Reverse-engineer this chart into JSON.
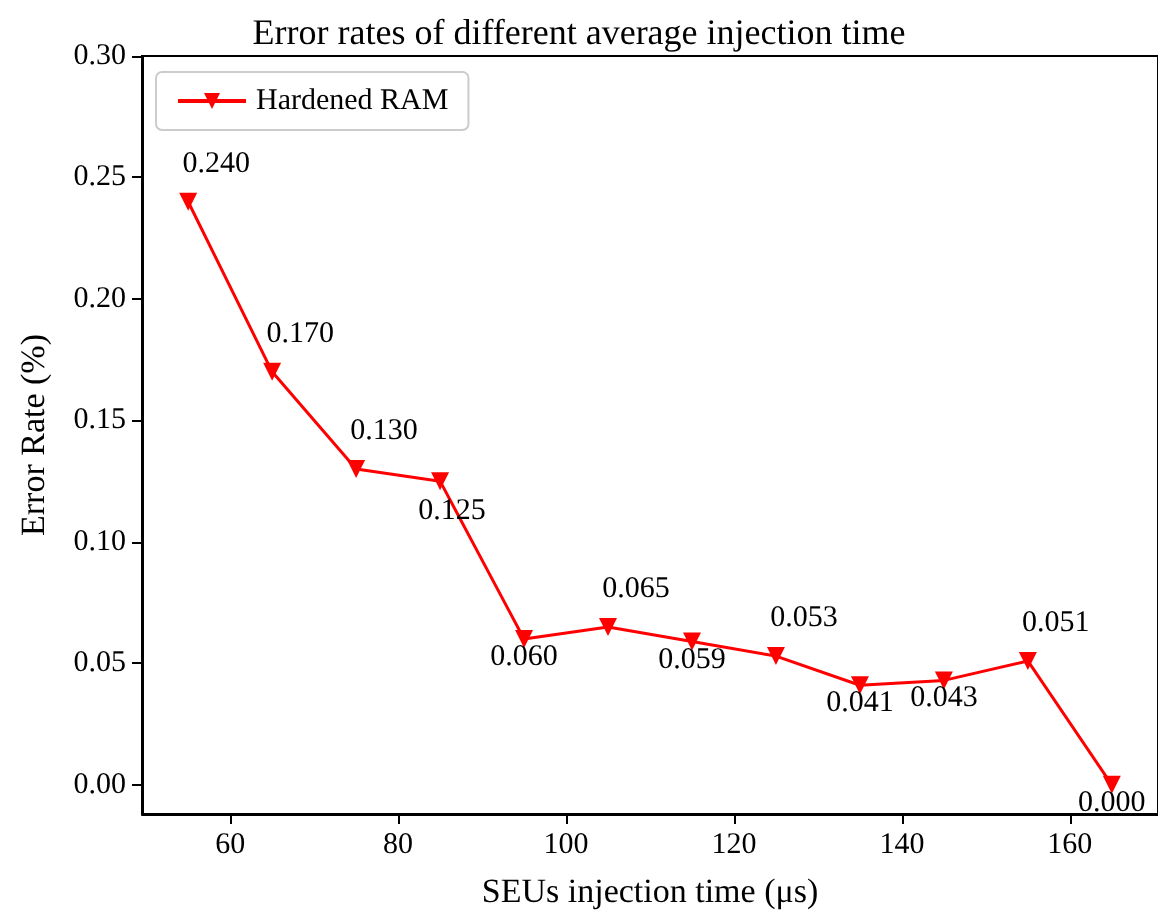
{
  "chart_data": {
    "type": "line",
    "title": "Error rates of different average injection time",
    "xlabel": "SEUs injection time (μs)",
    "ylabel": "Error Rate (%)",
    "x": [
      55,
      65,
      75,
      85,
      95,
      105,
      115,
      125,
      135,
      145,
      155,
      165
    ],
    "series": [
      {
        "name": "Hardened RAM",
        "color": "#ff0000",
        "values": [
          0.24,
          0.17,
          0.13,
          0.125,
          0.06,
          0.065,
          0.059,
          0.053,
          0.041,
          0.043,
          0.051,
          0.0
        ],
        "value_labels": [
          "0.240",
          "0.170",
          "0.130",
          "0.125",
          "0.060",
          "0.065",
          "0.059",
          "0.053",
          "0.041",
          "0.043",
          "0.051",
          "0.000"
        ]
      }
    ],
    "xlim": [
      49.5,
      170.5
    ],
    "xticks": [
      60,
      80,
      100,
      120,
      140,
      160
    ],
    "ylim": [
      -0.012,
      0.3
    ],
    "yticks": [
      {
        "value": 0,
        "label": "0.00"
      },
      {
        "value": 0.05,
        "label": "0.05"
      },
      {
        "value": 0.1,
        "label": "0.10"
      },
      {
        "value": 0.15,
        "label": "0.15"
      },
      {
        "value": 0.2,
        "label": "0.20"
      },
      {
        "value": 0.25,
        "label": "0.25"
      },
      {
        "value": 0.3,
        "label": "0.30"
      }
    ],
    "grid": false,
    "legend": "top left",
    "marker": "triangle",
    "line_style": "solid"
  }
}
